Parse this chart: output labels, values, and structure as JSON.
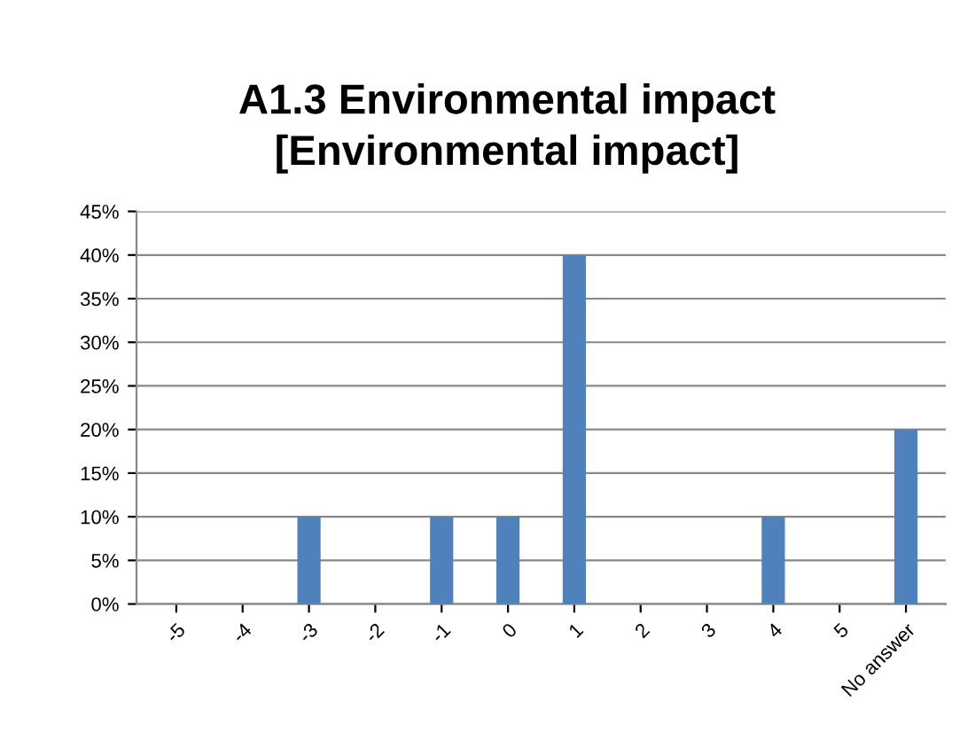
{
  "chart_data": {
    "type": "bar",
    "title": "A1.3 Environmental impact\n[Environmental impact]",
    "categories": [
      "-5",
      "-4",
      "-3",
      "-2",
      "-1",
      "0",
      "1",
      "2",
      "3",
      "4",
      "5",
      "No answer"
    ],
    "values": [
      0,
      0,
      10,
      0,
      10,
      10,
      40,
      0,
      0,
      10,
      0,
      20
    ],
    "color": "#4f81bd",
    "ylim": [
      0,
      45
    ],
    "yticks": [
      {
        "value": 0,
        "label": "0%"
      },
      {
        "value": 5,
        "label": "5%"
      },
      {
        "value": 10,
        "label": "10%"
      },
      {
        "value": 15,
        "label": "15%"
      },
      {
        "value": 20,
        "label": "20%"
      },
      {
        "value": 25,
        "label": "25%"
      },
      {
        "value": 30,
        "label": "30%"
      },
      {
        "value": 35,
        "label": "35%"
      },
      {
        "value": 40,
        "label": "40%"
      },
      {
        "value": 45,
        "label": "45%"
      }
    ],
    "grid": "y",
    "legend": false
  }
}
